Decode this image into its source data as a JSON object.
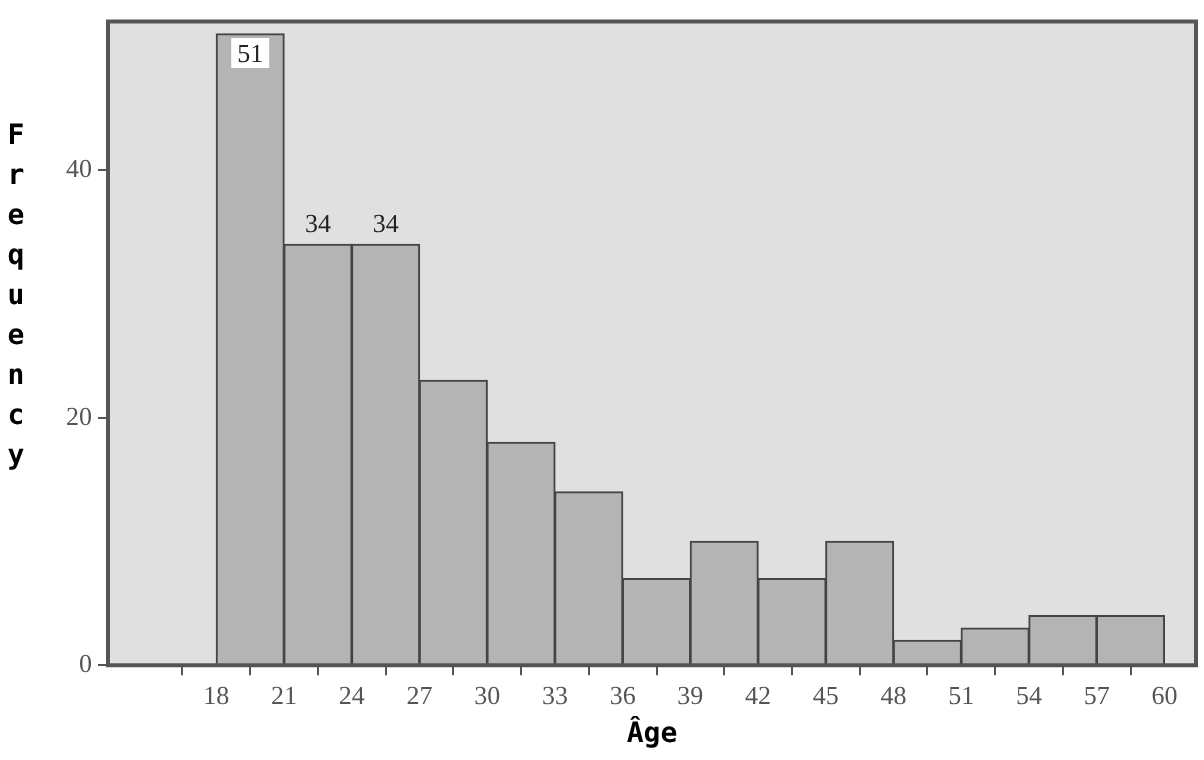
{
  "chart_data": {
    "type": "histogram",
    "xlabel": "Âge",
    "ylabel": "Frequency",
    "bins": [
      15,
      18,
      21,
      24,
      27,
      30,
      33,
      36,
      39,
      42,
      45,
      48,
      51,
      54,
      57,
      60
    ],
    "values": [
      0,
      51,
      34,
      34,
      23,
      18,
      14,
      7,
      10,
      7,
      10,
      2,
      3,
      4,
      4
    ],
    "value_labels": [
      null,
      "51",
      "34",
      "34",
      null,
      null,
      null,
      null,
      null,
      null,
      null,
      null,
      null,
      null,
      null
    ],
    "color": "#b4b4b4",
    "xlim": [
      13.2,
      61.4
    ],
    "xticks": [
      18,
      21,
      24,
      27,
      30,
      33,
      36,
      39,
      42,
      45,
      48,
      51,
      54,
      57,
      60
    ],
    "ylim": [
      0,
      52
    ],
    "yticks": [
      0,
      20,
      40
    ],
    "legend": false
  }
}
